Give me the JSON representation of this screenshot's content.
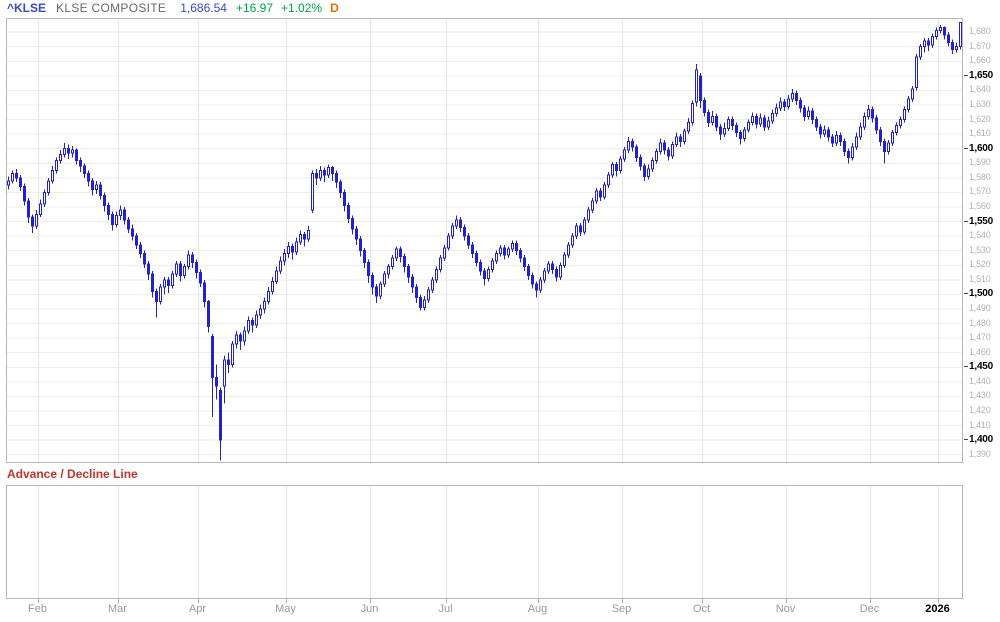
{
  "header": {
    "symbol": "^KLSE",
    "name": "KLSE COMPOSITE",
    "last": "1,686.54",
    "change": "+16.97",
    "change_pct": "+1.02%",
    "period": "D"
  },
  "indicator_panel": {
    "title": "Advance / Decline Line"
  },
  "colors": {
    "candle_blue": "#2222cd",
    "up_fill": "#ffffff",
    "grid_line": "#ededed",
    "month_line": "#e5e5e5",
    "panel_border": "#b7b7b7",
    "axis_minor": "#b2b2b2",
    "axis_major": "#000000",
    "month_label": "#9a9a9a",
    "symbol_blue": "#3b49c6",
    "name_gray": "#67696c",
    "change_green": "#00a244",
    "period_orange": "#ef6c00",
    "indicator_red": "#c0362c"
  },
  "chart_data": {
    "type": "candlestick",
    "title": "KLSE COMPOSITE daily candlesticks",
    "y_axis": {
      "label_min": 1390,
      "label_max": 1680,
      "step": 10,
      "major_step": 50,
      "render_range": [
        1385,
        1689
      ]
    },
    "x_axis": {
      "month_starts": [
        {
          "label": "Feb",
          "index": 8
        },
        {
          "label": "Mar",
          "index": 28
        },
        {
          "label": "Apr",
          "index": 48
        },
        {
          "label": "May",
          "index": 70
        },
        {
          "label": "Jun",
          "index": 91
        },
        {
          "label": "Jul",
          "index": 110
        },
        {
          "label": "Aug",
          "index": 133
        },
        {
          "label": "Sep",
          "index": 154
        },
        {
          "label": "Oct",
          "index": 174
        },
        {
          "label": "Nov",
          "index": 195
        },
        {
          "label": "Dec",
          "index": 216
        },
        {
          "label": "2026",
          "index": 233,
          "major": true
        }
      ]
    },
    "ohlc": [
      [
        1575,
        1581,
        1572,
        1578
      ],
      [
        1578,
        1585,
        1576,
        1583
      ],
      [
        1583,
        1586,
        1577,
        1580
      ],
      [
        1580,
        1582,
        1571,
        1574
      ],
      [
        1574,
        1576,
        1561,
        1564
      ],
      [
        1564,
        1566,
        1549,
        1553
      ],
      [
        1553,
        1555,
        1542,
        1547
      ],
      [
        1547,
        1558,
        1545,
        1555
      ],
      [
        1555,
        1565,
        1553,
        1562
      ],
      [
        1562,
        1572,
        1560,
        1570
      ],
      [
        1570,
        1580,
        1568,
        1578
      ],
      [
        1578,
        1588,
        1576,
        1585
      ],
      [
        1585,
        1594,
        1583,
        1592
      ],
      [
        1592,
        1599,
        1590,
        1596
      ],
      [
        1596,
        1604,
        1594,
        1600
      ],
      [
        1600,
        1603,
        1593,
        1597
      ],
      [
        1597,
        1602,
        1594,
        1599
      ],
      [
        1599,
        1600,
        1589,
        1592
      ],
      [
        1592,
        1594,
        1584,
        1588
      ],
      [
        1588,
        1590,
        1580,
        1583
      ],
      [
        1583,
        1585,
        1574,
        1578
      ],
      [
        1578,
        1580,
        1568,
        1572
      ],
      [
        1572,
        1578,
        1569,
        1575
      ],
      [
        1575,
        1577,
        1565,
        1568
      ],
      [
        1568,
        1570,
        1557,
        1561
      ],
      [
        1561,
        1563,
        1551,
        1555
      ],
      [
        1555,
        1557,
        1544,
        1548
      ],
      [
        1548,
        1557,
        1546,
        1554
      ],
      [
        1554,
        1561,
        1551,
        1558
      ],
      [
        1558,
        1560,
        1548,
        1551
      ],
      [
        1551,
        1553,
        1542,
        1545
      ],
      [
        1545,
        1548,
        1537,
        1540
      ],
      [
        1540,
        1542,
        1531,
        1534
      ],
      [
        1534,
        1536,
        1525,
        1528
      ],
      [
        1528,
        1530,
        1518,
        1521
      ],
      [
        1521,
        1523,
        1510,
        1514
      ],
      [
        1514,
        1516,
        1498,
        1502
      ],
      [
        1502,
        1504,
        1484,
        1495
      ],
      [
        1495,
        1507,
        1493,
        1505
      ],
      [
        1505,
        1512,
        1500,
        1510
      ],
      [
        1510,
        1512,
        1501,
        1506
      ],
      [
        1506,
        1516,
        1504,
        1514
      ],
      [
        1514,
        1523,
        1512,
        1521
      ],
      [
        1521,
        1523,
        1509,
        1513
      ],
      [
        1513,
        1521,
        1511,
        1519
      ],
      [
        1519,
        1530,
        1517,
        1527
      ],
      [
        1527,
        1529,
        1518,
        1522
      ],
      [
        1522,
        1524,
        1511,
        1515
      ],
      [
        1515,
        1517,
        1505,
        1508
      ],
      [
        1508,
        1510,
        1491,
        1495
      ],
      [
        1495,
        1496,
        1474,
        1478
      ],
      [
        1471,
        1473,
        1416,
        1443
      ],
      [
        1443,
        1452,
        1428,
        1437
      ],
      [
        1434,
        1436,
        1386,
        1400
      ],
      [
        1437,
        1458,
        1425,
        1455
      ],
      [
        1455,
        1460,
        1446,
        1452
      ],
      [
        1452,
        1468,
        1450,
        1466
      ],
      [
        1466,
        1475,
        1463,
        1472
      ],
      [
        1472,
        1474,
        1462,
        1468
      ],
      [
        1468,
        1478,
        1465,
        1475
      ],
      [
        1475,
        1485,
        1473,
        1482
      ],
      [
        1482,
        1484,
        1474,
        1479
      ],
      [
        1479,
        1489,
        1477,
        1486
      ],
      [
        1486,
        1493,
        1483,
        1490
      ],
      [
        1490,
        1498,
        1487,
        1495
      ],
      [
        1495,
        1505,
        1493,
        1502
      ],
      [
        1502,
        1512,
        1500,
        1509
      ],
      [
        1509,
        1519,
        1507,
        1516
      ],
      [
        1516,
        1526,
        1514,
        1523
      ],
      [
        1523,
        1531,
        1520,
        1528
      ],
      [
        1528,
        1536,
        1525,
        1533
      ],
      [
        1533,
        1535,
        1524,
        1529
      ],
      [
        1529,
        1539,
        1527,
        1536
      ],
      [
        1536,
        1544,
        1534,
        1541
      ],
      [
        1541,
        1543,
        1533,
        1538
      ],
      [
        1538,
        1547,
        1536,
        1544
      ],
      [
        1558,
        1585,
        1556,
        1583
      ],
      [
        1583,
        1586,
        1575,
        1580
      ],
      [
        1580,
        1588,
        1578,
        1585
      ],
      [
        1585,
        1587,
        1577,
        1582
      ],
      [
        1582,
        1589,
        1580,
        1587
      ],
      [
        1587,
        1588,
        1578,
        1583
      ],
      [
        1583,
        1585,
        1573,
        1577
      ],
      [
        1577,
        1579,
        1566,
        1570
      ],
      [
        1570,
        1572,
        1557,
        1561
      ],
      [
        1561,
        1563,
        1549,
        1552
      ],
      [
        1552,
        1554,
        1541,
        1545
      ],
      [
        1545,
        1547,
        1534,
        1538
      ],
      [
        1538,
        1540,
        1526,
        1530
      ],
      [
        1530,
        1532,
        1518,
        1522
      ],
      [
        1522,
        1524,
        1508,
        1513
      ],
      [
        1513,
        1515,
        1500,
        1505
      ],
      [
        1505,
        1507,
        1494,
        1499
      ],
      [
        1499,
        1509,
        1497,
        1507
      ],
      [
        1507,
        1516,
        1505,
        1514
      ],
      [
        1514,
        1521,
        1511,
        1519
      ],
      [
        1519,
        1527,
        1517,
        1525
      ],
      [
        1525,
        1533,
        1523,
        1531
      ],
      [
        1531,
        1533,
        1522,
        1526
      ],
      [
        1526,
        1528,
        1515,
        1519
      ],
      [
        1519,
        1521,
        1508,
        1512
      ],
      [
        1512,
        1514,
        1501,
        1505
      ],
      [
        1505,
        1507,
        1494,
        1498
      ],
      [
        1498,
        1500,
        1489,
        1491
      ],
      [
        1491,
        1499,
        1489,
        1496
      ],
      [
        1496,
        1505,
        1494,
        1503
      ],
      [
        1503,
        1512,
        1501,
        1510
      ],
      [
        1510,
        1519,
        1508,
        1517
      ],
      [
        1517,
        1527,
        1515,
        1525
      ],
      [
        1525,
        1534,
        1523,
        1532
      ],
      [
        1532,
        1542,
        1530,
        1540
      ],
      [
        1540,
        1549,
        1538,
        1547
      ],
      [
        1547,
        1554,
        1545,
        1551
      ],
      [
        1551,
        1553,
        1543,
        1546
      ],
      [
        1546,
        1548,
        1537,
        1540
      ],
      [
        1540,
        1542,
        1531,
        1534
      ],
      [
        1534,
        1536,
        1525,
        1528
      ],
      [
        1528,
        1530,
        1519,
        1522
      ],
      [
        1522,
        1524,
        1513,
        1516
      ],
      [
        1516,
        1518,
        1506,
        1511
      ],
      [
        1511,
        1519,
        1509,
        1517
      ],
      [
        1517,
        1525,
        1515,
        1523
      ],
      [
        1523,
        1530,
        1521,
        1528
      ],
      [
        1528,
        1534,
        1526,
        1532
      ],
      [
        1532,
        1534,
        1524,
        1527
      ],
      [
        1527,
        1533,
        1525,
        1531
      ],
      [
        1531,
        1537,
        1529,
        1535
      ],
      [
        1535,
        1537,
        1527,
        1530
      ],
      [
        1530,
        1532,
        1522,
        1525
      ],
      [
        1525,
        1527,
        1516,
        1519
      ],
      [
        1519,
        1521,
        1510,
        1513
      ],
      [
        1513,
        1515,
        1504,
        1507
      ],
      [
        1507,
        1509,
        1498,
        1503
      ],
      [
        1503,
        1512,
        1501,
        1510
      ],
      [
        1510,
        1518,
        1508,
        1516
      ],
      [
        1516,
        1523,
        1514,
        1521
      ],
      [
        1521,
        1523,
        1514,
        1517
      ],
      [
        1517,
        1519,
        1509,
        1512
      ],
      [
        1512,
        1522,
        1510,
        1520
      ],
      [
        1520,
        1529,
        1518,
        1527
      ],
      [
        1527,
        1536,
        1525,
        1534
      ],
      [
        1534,
        1542,
        1532,
        1540
      ],
      [
        1540,
        1549,
        1538,
        1547
      ],
      [
        1547,
        1549,
        1540,
        1543
      ],
      [
        1543,
        1553,
        1541,
        1551
      ],
      [
        1551,
        1560,
        1549,
        1558
      ],
      [
        1558,
        1566,
        1556,
        1564
      ],
      [
        1564,
        1573,
        1562,
        1571
      ],
      [
        1571,
        1573,
        1564,
        1567
      ],
      [
        1567,
        1577,
        1565,
        1575
      ],
      [
        1575,
        1584,
        1573,
        1582
      ],
      [
        1582,
        1591,
        1580,
        1589
      ],
      [
        1589,
        1591,
        1581,
        1585
      ],
      [
        1585,
        1595,
        1583,
        1593
      ],
      [
        1593,
        1601,
        1591,
        1599
      ],
      [
        1599,
        1608,
        1597,
        1605
      ],
      [
        1605,
        1607,
        1598,
        1601
      ],
      [
        1601,
        1603,
        1591,
        1594
      ],
      [
        1594,
        1596,
        1585,
        1588
      ],
      [
        1588,
        1590,
        1578,
        1581
      ],
      [
        1581,
        1589,
        1579,
        1586
      ],
      [
        1586,
        1594,
        1584,
        1592
      ],
      [
        1592,
        1600,
        1590,
        1598
      ],
      [
        1598,
        1607,
        1596,
        1604
      ],
      [
        1604,
        1606,
        1596,
        1599
      ],
      [
        1599,
        1601,
        1592,
        1595
      ],
      [
        1595,
        1605,
        1593,
        1603
      ],
      [
        1603,
        1611,
        1601,
        1608
      ],
      [
        1608,
        1610,
        1601,
        1605
      ],
      [
        1605,
        1614,
        1603,
        1612
      ],
      [
        1612,
        1621,
        1610,
        1618
      ],
      [
        1618,
        1633,
        1616,
        1631
      ],
      [
        1632,
        1658,
        1629,
        1654
      ],
      [
        1650,
        1652,
        1628,
        1633
      ],
      [
        1633,
        1635,
        1622,
        1625
      ],
      [
        1625,
        1627,
        1615,
        1618
      ],
      [
        1618,
        1626,
        1616,
        1622
      ],
      [
        1622,
        1624,
        1612,
        1615
      ],
      [
        1615,
        1617,
        1606,
        1610
      ],
      [
        1610,
        1618,
        1608,
        1614
      ],
      [
        1614,
        1622,
        1612,
        1620
      ],
      [
        1620,
        1622,
        1613,
        1616
      ],
      [
        1616,
        1618,
        1608,
        1611
      ],
      [
        1611,
        1613,
        1603,
        1607
      ],
      [
        1607,
        1615,
        1605,
        1613
      ],
      [
        1613,
        1620,
        1611,
        1618
      ],
      [
        1618,
        1625,
        1616,
        1622
      ],
      [
        1622,
        1624,
        1614,
        1617
      ],
      [
        1617,
        1624,
        1615,
        1621
      ],
      [
        1621,
        1623,
        1612,
        1615
      ],
      [
        1615,
        1622,
        1613,
        1619
      ],
      [
        1619,
        1627,
        1617,
        1624
      ],
      [
        1624,
        1631,
        1622,
        1628
      ],
      [
        1628,
        1635,
        1626,
        1632
      ],
      [
        1632,
        1634,
        1626,
        1629
      ],
      [
        1629,
        1637,
        1627,
        1634
      ],
      [
        1634,
        1641,
        1632,
        1638
      ],
      [
        1638,
        1640,
        1630,
        1633
      ],
      [
        1633,
        1635,
        1625,
        1628
      ],
      [
        1628,
        1630,
        1619,
        1622
      ],
      [
        1622,
        1629,
        1620,
        1626
      ],
      [
        1626,
        1628,
        1617,
        1620
      ],
      [
        1620,
        1622,
        1612,
        1615
      ],
      [
        1615,
        1617,
        1607,
        1610
      ],
      [
        1610,
        1616,
        1608,
        1613
      ],
      [
        1613,
        1615,
        1605,
        1608
      ],
      [
        1608,
        1610,
        1601,
        1604
      ],
      [
        1604,
        1612,
        1602,
        1609
      ],
      [
        1609,
        1611,
        1602,
        1605
      ],
      [
        1605,
        1607,
        1595,
        1598
      ],
      [
        1598,
        1600,
        1590,
        1594
      ],
      [
        1594,
        1604,
        1592,
        1601
      ],
      [
        1601,
        1611,
        1599,
        1608
      ],
      [
        1608,
        1618,
        1606,
        1615
      ],
      [
        1615,
        1625,
        1613,
        1622
      ],
      [
        1622,
        1630,
        1620,
        1627
      ],
      [
        1627,
        1629,
        1618,
        1621
      ],
      [
        1621,
        1623,
        1610,
        1613
      ],
      [
        1613,
        1615,
        1602,
        1605
      ],
      [
        1605,
        1607,
        1590,
        1598
      ],
      [
        1598,
        1606,
        1596,
        1604
      ],
      [
        1604,
        1613,
        1602,
        1611
      ],
      [
        1611,
        1618,
        1609,
        1616
      ],
      [
        1616,
        1622,
        1614,
        1620
      ],
      [
        1620,
        1629,
        1618,
        1627
      ],
      [
        1627,
        1636,
        1625,
        1634
      ],
      [
        1634,
        1643,
        1632,
        1641
      ],
      [
        1642,
        1665,
        1640,
        1663
      ],
      [
        1663,
        1672,
        1661,
        1670
      ],
      [
        1670,
        1676,
        1666,
        1674
      ],
      [
        1674,
        1676,
        1667,
        1671
      ],
      [
        1671,
        1679,
        1669,
        1677
      ],
      [
        1677,
        1683,
        1675,
        1681
      ],
      [
        1681,
        1685,
        1679,
        1683
      ],
      [
        1683,
        1684,
        1675,
        1678
      ],
      [
        1678,
        1680,
        1670,
        1673
      ],
      [
        1673,
        1675,
        1665,
        1668
      ],
      [
        1668,
        1673,
        1666,
        1670
      ],
      [
        1670,
        1687,
        1668,
        1686.54
      ]
    ]
  }
}
